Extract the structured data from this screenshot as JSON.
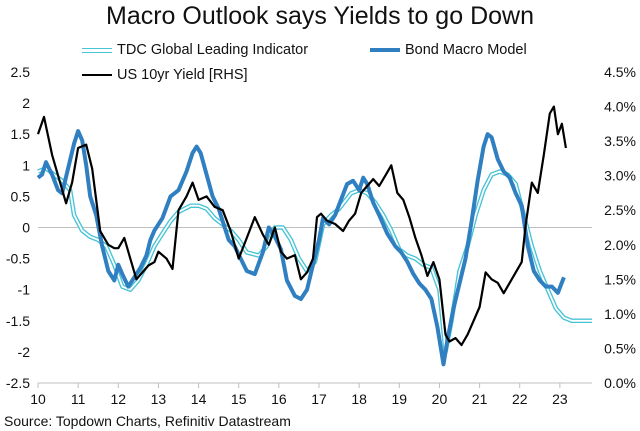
{
  "chart_data": {
    "type": "line",
    "title": "Macro Outlook says Yields to go Down",
    "source": "Source: Topdown Charts, Refinitiv Datastream",
    "x_ticks": [
      "10",
      "11",
      "12",
      "13",
      "14",
      "15",
      "16",
      "17",
      "18",
      "19",
      "20",
      "21",
      "22",
      "23"
    ],
    "x_range": [
      2010,
      2023.8
    ],
    "y_left": {
      "range": [
        -2.5,
        2.5
      ],
      "ticks": [
        "2.5",
        "2",
        "1.5",
        "1",
        "0.5",
        "0",
        "-0.5",
        "-1",
        "-1.5",
        "-2",
        "-2.5"
      ]
    },
    "y_right": {
      "range": [
        0.0,
        4.5
      ],
      "ticks": [
        "4.5%",
        "4.0%",
        "3.5%",
        "3.0%",
        "2.5%",
        "2.0%",
        "1.5%",
        "1.0%",
        "0.5%",
        "0.0%"
      ]
    },
    "legend_position": "top",
    "series": [
      {
        "name": "TDC Global Leading Indicator",
        "axis": "left",
        "color": "#47c3d6",
        "style": "double-outline",
        "points": [
          [
            2010.0,
            0.9
          ],
          [
            2010.2,
            0.95
          ],
          [
            2010.4,
            0.85
          ],
          [
            2010.6,
            0.75
          ],
          [
            2010.8,
            0.6
          ],
          [
            2010.9,
            0.2
          ],
          [
            2011.1,
            -0.05
          ],
          [
            2011.3,
            -0.15
          ],
          [
            2011.5,
            -0.2
          ],
          [
            2011.7,
            -0.3
          ],
          [
            2011.9,
            -0.6
          ],
          [
            2012.1,
            -0.95
          ],
          [
            2012.3,
            -1.0
          ],
          [
            2012.5,
            -0.85
          ],
          [
            2012.7,
            -0.6
          ],
          [
            2012.9,
            -0.3
          ],
          [
            2013.1,
            -0.1
          ],
          [
            2013.3,
            0.1
          ],
          [
            2013.5,
            0.25
          ],
          [
            2013.8,
            0.35
          ],
          [
            2014.0,
            0.35
          ],
          [
            2014.2,
            0.3
          ],
          [
            2014.4,
            0.15
          ],
          [
            2014.6,
            0.05
          ],
          [
            2014.8,
            -0.05
          ],
          [
            2015.0,
            -0.2
          ],
          [
            2015.2,
            -0.4
          ],
          [
            2015.5,
            -0.45
          ],
          [
            2015.7,
            -0.3
          ],
          [
            2015.9,
            0.0
          ],
          [
            2016.1,
            0.0
          ],
          [
            2016.3,
            -0.2
          ],
          [
            2016.5,
            -0.5
          ],
          [
            2016.7,
            -0.7
          ],
          [
            2016.9,
            -0.55
          ],
          [
            2017.1,
            0.05
          ],
          [
            2017.3,
            0.2
          ],
          [
            2017.5,
            0.3
          ],
          [
            2017.8,
            0.55
          ],
          [
            2018.0,
            0.6
          ],
          [
            2018.2,
            0.55
          ],
          [
            2018.4,
            0.4
          ],
          [
            2018.6,
            0.2
          ],
          [
            2018.8,
            -0.05
          ],
          [
            2019.0,
            -0.35
          ],
          [
            2019.2,
            -0.45
          ],
          [
            2019.4,
            -0.5
          ],
          [
            2019.6,
            -0.6
          ],
          [
            2019.8,
            -0.65
          ],
          [
            2020.0,
            -1.0
          ],
          [
            2020.15,
            -2.0
          ],
          [
            2020.3,
            -1.5
          ],
          [
            2020.5,
            -0.7
          ],
          [
            2020.7,
            -0.3
          ],
          [
            2020.9,
            0.2
          ],
          [
            2021.1,
            0.6
          ],
          [
            2021.3,
            0.85
          ],
          [
            2021.5,
            0.9
          ],
          [
            2021.7,
            0.85
          ],
          [
            2021.9,
            0.7
          ],
          [
            2022.1,
            0.2
          ],
          [
            2022.3,
            -0.3
          ],
          [
            2022.5,
            -0.7
          ],
          [
            2022.7,
            -1.0
          ],
          [
            2022.9,
            -1.3
          ],
          [
            2023.1,
            -1.45
          ],
          [
            2023.3,
            -1.5
          ],
          [
            2023.5,
            -1.5
          ],
          [
            2023.8,
            -1.5
          ]
        ]
      },
      {
        "name": "Bond Macro Model",
        "axis": "left",
        "color": "#2f7fc1",
        "style": "thick",
        "points": [
          [
            2010.0,
            0.8
          ],
          [
            2010.1,
            0.85
          ],
          [
            2010.2,
            1.05
          ],
          [
            2010.35,
            0.85
          ],
          [
            2010.5,
            0.6
          ],
          [
            2010.6,
            0.55
          ],
          [
            2010.75,
            0.95
          ],
          [
            2010.9,
            1.35
          ],
          [
            2011.0,
            1.55
          ],
          [
            2011.1,
            1.4
          ],
          [
            2011.2,
            1.0
          ],
          [
            2011.3,
            0.5
          ],
          [
            2011.45,
            0.2
          ],
          [
            2011.6,
            -0.3
          ],
          [
            2011.75,
            -0.7
          ],
          [
            2011.9,
            -0.85
          ],
          [
            2012.0,
            -0.6
          ],
          [
            2012.1,
            -0.75
          ],
          [
            2012.25,
            -0.95
          ],
          [
            2012.4,
            -0.8
          ],
          [
            2012.55,
            -0.65
          ],
          [
            2012.7,
            -0.45
          ],
          [
            2012.8,
            -0.2
          ],
          [
            2012.9,
            -0.05
          ],
          [
            2013.1,
            0.15
          ],
          [
            2013.3,
            0.5
          ],
          [
            2013.5,
            0.6
          ],
          [
            2013.7,
            0.9
          ],
          [
            2013.85,
            1.2
          ],
          [
            2013.95,
            1.3
          ],
          [
            2014.05,
            1.2
          ],
          [
            2014.2,
            0.85
          ],
          [
            2014.35,
            0.5
          ],
          [
            2014.5,
            0.3
          ],
          [
            2014.6,
            0.1
          ],
          [
            2014.75,
            -0.2
          ],
          [
            2014.9,
            -0.3
          ],
          [
            2015.05,
            -0.5
          ],
          [
            2015.2,
            -0.7
          ],
          [
            2015.4,
            -0.75
          ],
          [
            2015.6,
            -0.4
          ],
          [
            2015.75,
            0.0
          ],
          [
            2015.9,
            -0.15
          ],
          [
            2016.05,
            -0.35
          ],
          [
            2016.2,
            -0.85
          ],
          [
            2016.4,
            -1.1
          ],
          [
            2016.55,
            -1.15
          ],
          [
            2016.7,
            -1.0
          ],
          [
            2016.85,
            -0.6
          ],
          [
            2017.0,
            -0.2
          ],
          [
            2017.1,
            0.15
          ],
          [
            2017.25,
            0.05
          ],
          [
            2017.4,
            0.2
          ],
          [
            2017.55,
            0.45
          ],
          [
            2017.7,
            0.7
          ],
          [
            2017.85,
            0.75
          ],
          [
            2018.0,
            0.6
          ],
          [
            2018.1,
            0.8
          ],
          [
            2018.2,
            0.7
          ],
          [
            2018.35,
            0.4
          ],
          [
            2018.5,
            0.2
          ],
          [
            2018.7,
            -0.1
          ],
          [
            2018.9,
            -0.3
          ],
          [
            2019.05,
            -0.4
          ],
          [
            2019.2,
            -0.55
          ],
          [
            2019.35,
            -0.75
          ],
          [
            2019.5,
            -0.9
          ],
          [
            2019.65,
            -1.0
          ],
          [
            2019.8,
            -1.15
          ],
          [
            2019.95,
            -1.6
          ],
          [
            2020.1,
            -2.2
          ],
          [
            2020.2,
            -1.8
          ],
          [
            2020.35,
            -1.3
          ],
          [
            2020.5,
            -0.9
          ],
          [
            2020.65,
            -0.5
          ],
          [
            2020.8,
            0.1
          ],
          [
            2020.95,
            0.75
          ],
          [
            2021.1,
            1.3
          ],
          [
            2021.2,
            1.5
          ],
          [
            2021.3,
            1.45
          ],
          [
            2021.45,
            1.1
          ],
          [
            2021.6,
            0.9
          ],
          [
            2021.75,
            0.8
          ],
          [
            2021.9,
            0.55
          ],
          [
            2022.05,
            0.35
          ],
          [
            2022.2,
            -0.3
          ],
          [
            2022.35,
            -0.7
          ],
          [
            2022.5,
            -0.85
          ],
          [
            2022.65,
            -0.95
          ],
          [
            2022.8,
            -0.95
          ],
          [
            2022.95,
            -1.05
          ],
          [
            2023.1,
            -0.8
          ]
        ]
      },
      {
        "name": "US 10yr Yield [RHS]",
        "axis": "right",
        "color": "#000000",
        "style": "solid",
        "points": [
          [
            2010.0,
            3.6
          ],
          [
            2010.15,
            3.85
          ],
          [
            2010.35,
            3.3
          ],
          [
            2010.55,
            2.9
          ],
          [
            2010.7,
            2.6
          ],
          [
            2010.85,
            2.9
          ],
          [
            2011.0,
            3.4
          ],
          [
            2011.2,
            3.45
          ],
          [
            2011.35,
            3.1
          ],
          [
            2011.55,
            2.2
          ],
          [
            2011.75,
            2.0
          ],
          [
            2011.9,
            1.95
          ],
          [
            2012.0,
            1.95
          ],
          [
            2012.15,
            2.1
          ],
          [
            2012.3,
            1.8
          ],
          [
            2012.45,
            1.5
          ],
          [
            2012.6,
            1.6
          ],
          [
            2012.75,
            1.7
          ],
          [
            2012.9,
            1.75
          ],
          [
            2013.0,
            1.9
          ],
          [
            2013.2,
            1.8
          ],
          [
            2013.35,
            1.65
          ],
          [
            2013.5,
            2.5
          ],
          [
            2013.7,
            2.7
          ],
          [
            2013.85,
            2.9
          ],
          [
            2014.0,
            2.65
          ],
          [
            2014.2,
            2.7
          ],
          [
            2014.4,
            2.55
          ],
          [
            2014.6,
            2.5
          ],
          [
            2014.8,
            2.2
          ],
          [
            2015.0,
            1.8
          ],
          [
            2015.2,
            2.1
          ],
          [
            2015.4,
            2.4
          ],
          [
            2015.6,
            2.15
          ],
          [
            2015.75,
            2.0
          ],
          [
            2015.9,
            2.25
          ],
          [
            2016.05,
            1.9
          ],
          [
            2016.2,
            1.8
          ],
          [
            2016.4,
            1.85
          ],
          [
            2016.55,
            1.5
          ],
          [
            2016.7,
            1.6
          ],
          [
            2016.85,
            1.8
          ],
          [
            2016.95,
            2.4
          ],
          [
            2017.05,
            2.45
          ],
          [
            2017.2,
            2.35
          ],
          [
            2017.4,
            2.3
          ],
          [
            2017.6,
            2.2
          ],
          [
            2017.75,
            2.35
          ],
          [
            2017.9,
            2.45
          ],
          [
            2018.05,
            2.75
          ],
          [
            2018.2,
            2.85
          ],
          [
            2018.35,
            2.95
          ],
          [
            2018.5,
            2.85
          ],
          [
            2018.65,
            3.0
          ],
          [
            2018.8,
            3.15
          ],
          [
            2018.95,
            2.75
          ],
          [
            2019.1,
            2.65
          ],
          [
            2019.25,
            2.4
          ],
          [
            2019.4,
            2.1
          ],
          [
            2019.55,
            1.85
          ],
          [
            2019.7,
            1.55
          ],
          [
            2019.85,
            1.75
          ],
          [
            2020.0,
            1.5
          ],
          [
            2020.15,
            0.7
          ],
          [
            2020.25,
            0.6
          ],
          [
            2020.4,
            0.65
          ],
          [
            2020.55,
            0.55
          ],
          [
            2020.7,
            0.7
          ],
          [
            2020.85,
            0.9
          ],
          [
            2021.0,
            1.1
          ],
          [
            2021.15,
            1.6
          ],
          [
            2021.3,
            1.5
          ],
          [
            2021.45,
            1.45
          ],
          [
            2021.6,
            1.3
          ],
          [
            2021.75,
            1.45
          ],
          [
            2021.9,
            1.6
          ],
          [
            2022.05,
            1.75
          ],
          [
            2022.15,
            2.3
          ],
          [
            2022.3,
            2.9
          ],
          [
            2022.45,
            2.75
          ],
          [
            2022.6,
            3.3
          ],
          [
            2022.75,
            3.9
          ],
          [
            2022.85,
            4.0
          ],
          [
            2022.95,
            3.6
          ],
          [
            2023.05,
            3.75
          ],
          [
            2023.15,
            3.4
          ]
        ]
      }
    ]
  }
}
